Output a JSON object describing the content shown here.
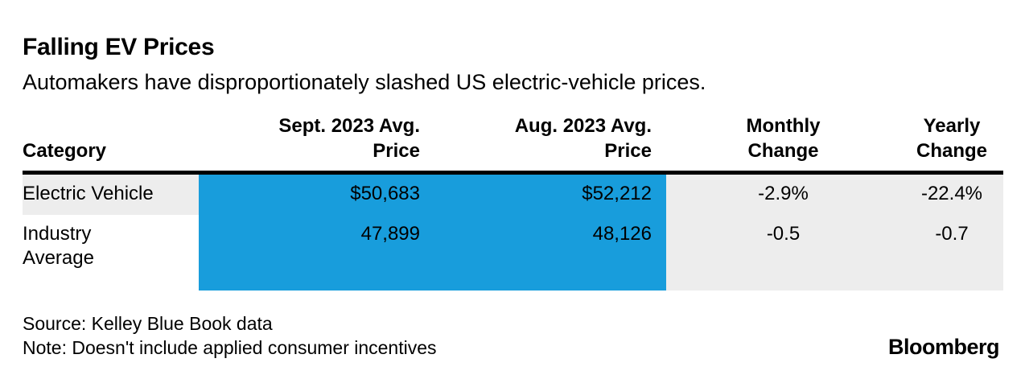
{
  "header": {
    "title": "Falling EV Prices",
    "subtitle": "Automakers have disproportionately slashed US electric-vehicle prices."
  },
  "table": {
    "columns": [
      {
        "label": "Category"
      },
      {
        "label": "Sept. 2023 Avg.\nPrice"
      },
      {
        "label": "Aug. 2023 Avg.\nPrice"
      },
      {
        "label": "Monthly\nChange"
      },
      {
        "label": "Yearly\nChange"
      }
    ],
    "rows": [
      {
        "category": "Electric Vehicle",
        "sept_price": "$50,683",
        "aug_price": "$52,212",
        "monthly_change": "-2.9%",
        "yearly_change": "-22.4%"
      },
      {
        "category": "Industry\nAverage",
        "sept_price": "47,899",
        "aug_price": "48,126",
        "monthly_change": "-0.5",
        "yearly_change": "-0.7"
      }
    ]
  },
  "footer": {
    "source": "Source: Kelley Blue Book data",
    "note": "Note: Doesn't include applied consumer incentives",
    "brand": "Bloomberg"
  },
  "colors": {
    "highlight_blue": "#189DDC",
    "highlight_gray": "#EDEDED",
    "rule_black": "#000000"
  },
  "chart_data": {
    "type": "table",
    "title": "Falling EV Prices",
    "subtitle": "Automakers have disproportionately slashed US electric-vehicle prices.",
    "columns": [
      "Category",
      "Sept. 2023 Avg. Price",
      "Aug. 2023 Avg. Price",
      "Monthly Change",
      "Yearly Change"
    ],
    "rows": [
      [
        "Electric Vehicle",
        50683,
        52212,
        -2.9,
        -22.4
      ],
      [
        "Industry Average",
        47899,
        48126,
        -0.5,
        -0.7
      ]
    ],
    "units": {
      "prices": "USD",
      "monthly_change": "%",
      "yearly_change": "%"
    },
    "source": "Source: Kelley Blue Book data",
    "note": "Note: Doesn't include applied consumer incentives",
    "layout_hints": {
      "price_columns_background": "#189DDC",
      "change_columns_background": "#EDEDED",
      "first_row_category_background": "#EDEDED",
      "header_rule": "thick black"
    }
  }
}
